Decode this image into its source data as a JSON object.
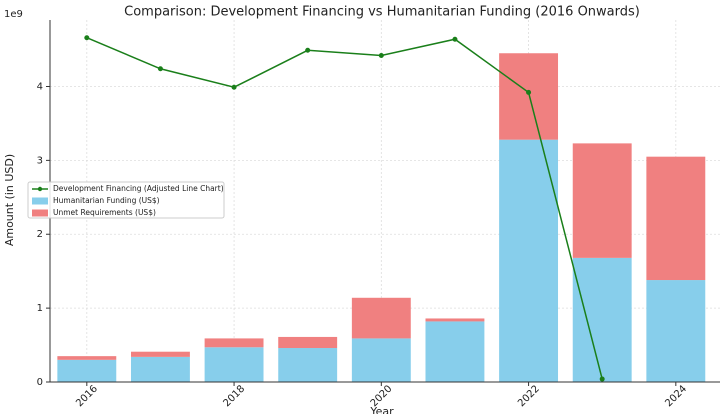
{
  "chart_data": {
    "type": "bar",
    "title": "Comparison: Development Financing vs Humanitarian Funding (2016 Onwards)",
    "x_label": "Year",
    "y_label": "Amount (in USD)",
    "y_offset_label": "1e9",
    "x": [
      2016,
      2017,
      2018,
      2019,
      2020,
      2021,
      2022,
      2023,
      2024
    ],
    "stacked": true,
    "grid": true,
    "legend": "center left",
    "series": [
      {
        "name": "Development Financing (Adjusted Line Chart)",
        "type": "line",
        "color": "#1a7f1a",
        "values": [
          4.66,
          4.24,
          3.99,
          4.49,
          4.42,
          4.64,
          3.92,
          0.04,
          null
        ]
      },
      {
        "name": "Humanitarian Funding (US$)",
        "type": "bar",
        "color": "#87ceeb",
        "values": [
          0.3,
          0.34,
          0.47,
          0.46,
          0.59,
          0.82,
          3.28,
          1.68,
          1.38
        ]
      },
      {
        "name": "Unmet Requirements (US$)",
        "type": "bar",
        "color": "#f08080",
        "values": [
          0.05,
          0.07,
          0.12,
          0.15,
          0.55,
          0.04,
          1.17,
          1.55,
          1.67
        ]
      }
    ],
    "xlim": [
      2015.5,
      2024.6
    ],
    "xticks": [
      2016,
      2018,
      2020,
      2022,
      2024
    ],
    "ylim": [
      0,
      4.9
    ],
    "yticks": [
      0,
      1,
      2,
      3,
      4
    ]
  }
}
